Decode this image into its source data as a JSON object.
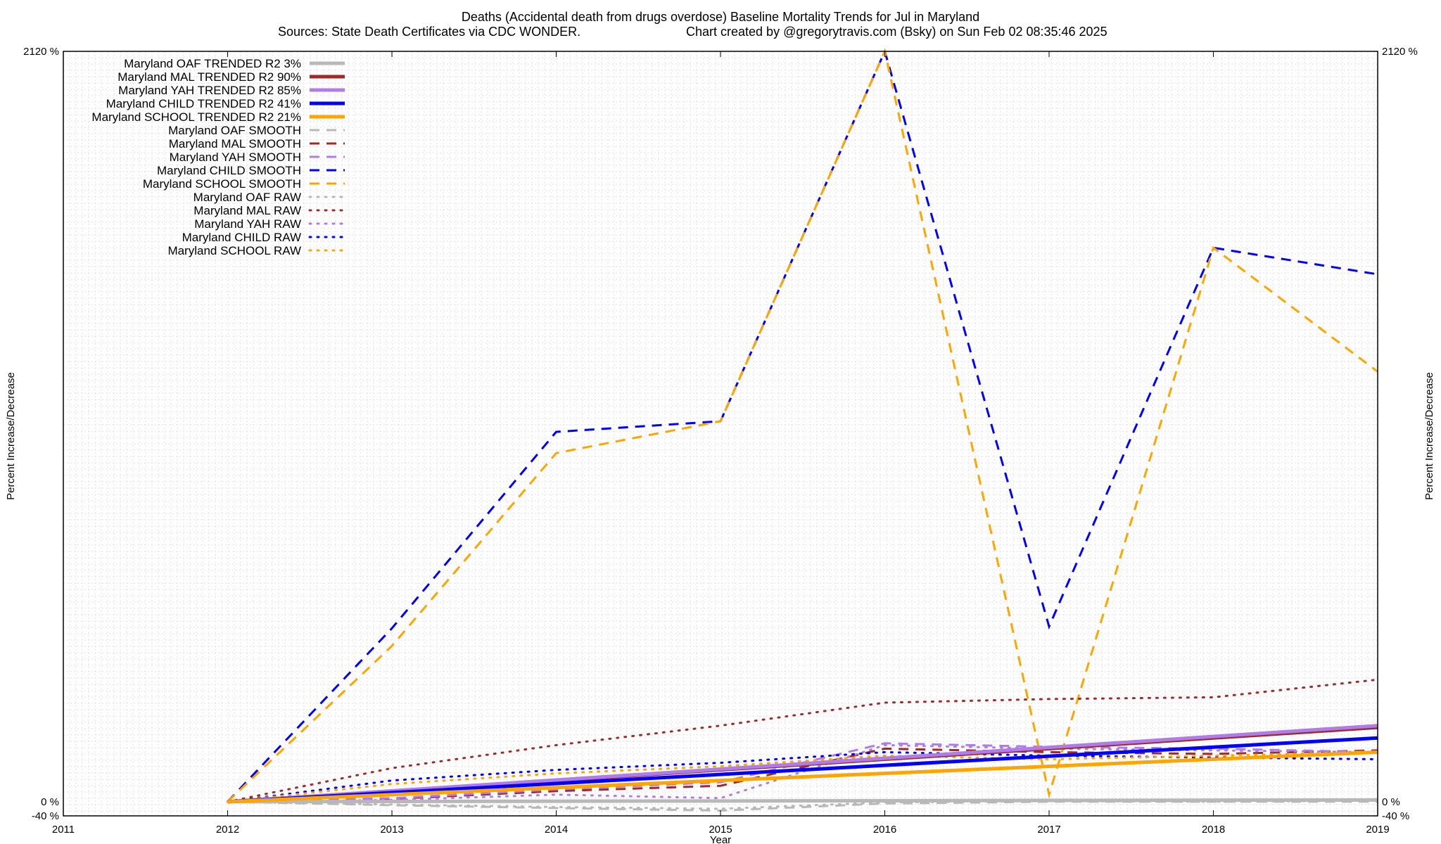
{
  "chart_data": {
    "type": "line",
    "title": "Deaths (Accidental death from drugs overdose)  Baseline Mortality Trends for Jul in Maryland",
    "subtitle": "Sources: State Death Certificates via CDC WONDER.",
    "credit": "Chart created by @gregorytravis.com (Bsky) on Sun Feb 02 08:35:46 2025",
    "xlabel": "Year",
    "ylabel": "Percent Increase/Decrease",
    "x_ticks": [
      "2011",
      "2012",
      "2013",
      "2014",
      "2015",
      "2016",
      "2017",
      "2018",
      "2019"
    ],
    "xlim": [
      2011,
      2019
    ],
    "ylim": [
      -40,
      2120
    ],
    "y_tick_labels": [
      "-40 %",
      "0 %",
      "2120 %"
    ],
    "grid": true,
    "legend_position": "top-left",
    "series": [
      {
        "name": "Maryland OAF TRENDED R2  3%",
        "color": "#b8b8b8",
        "style": "solid",
        "width": 5,
        "x": [
          2012,
          2019
        ],
        "y": [
          0,
          5
        ]
      },
      {
        "name": "Maryland MAL TRENDED R2  90%",
        "color": "#9e2a2a",
        "style": "solid",
        "width": 5,
        "x": [
          2012,
          2019
        ],
        "y": [
          0,
          210
        ]
      },
      {
        "name": "Maryland YAH TRENDED R2  85%",
        "color": "#b07ce8",
        "style": "solid",
        "width": 5,
        "x": [
          2012,
          2019
        ],
        "y": [
          0,
          215
        ]
      },
      {
        "name": "Maryland CHILD TRENDED R2  41%",
        "color": "#0000ff",
        "style": "solid",
        "width": 5,
        "x": [
          2012,
          2019
        ],
        "y": [
          0,
          180
        ]
      },
      {
        "name": "Maryland SCHOOL TRENDED R2  21%",
        "color": "#ffa500",
        "style": "solid",
        "width": 5,
        "x": [
          2012,
          2019
        ],
        "y": [
          0,
          140
        ]
      },
      {
        "name": "Maryland OAF SMOOTH",
        "color": "#b8b8b8",
        "style": "dashed",
        "width": 3,
        "x": [
          2012,
          2013,
          2014,
          2015,
          2016,
          2017,
          2018,
          2019
        ],
        "y": [
          0,
          -10,
          -18,
          -25,
          -5,
          0,
          0,
          0
        ]
      },
      {
        "name": "Maryland MAL SMOOTH",
        "color": "#9e2a2a",
        "style": "dashed",
        "width": 3,
        "x": [
          2012,
          2013,
          2014,
          2015,
          2016,
          2017,
          2018,
          2019
        ],
        "y": [
          0,
          8,
          30,
          45,
          150,
          140,
          135,
          145
        ]
      },
      {
        "name": "Maryland YAH SMOOTH",
        "color": "#b07ce8",
        "style": "dashed",
        "width": 3,
        "x": [
          2012,
          2013,
          2014,
          2015,
          2016,
          2017,
          2018,
          2019
        ],
        "y": [
          0,
          10,
          35,
          55,
          165,
          155,
          150,
          140
        ]
      },
      {
        "name": "Maryland CHILD SMOOTH",
        "color": "#0000ff",
        "style": "dashed",
        "width": 3,
        "x": [
          2012,
          2013,
          2014,
          2015,
          2016,
          2017,
          2018,
          2019
        ],
        "y": [
          0,
          490,
          1045,
          1075,
          2120,
          495,
          1565,
          1490
        ]
      },
      {
        "name": "Maryland SCHOOL SMOOTH",
        "color": "#ffa500",
        "style": "dashed",
        "width": 3,
        "x": [
          2012,
          2013,
          2014,
          2015,
          2016,
          2017,
          2018,
          2019
        ],
        "y": [
          0,
          440,
          985,
          1075,
          2120,
          20,
          1565,
          1215
        ]
      },
      {
        "name": "Maryland OAF RAW",
        "color": "#b8b8b8",
        "style": "dotted",
        "width": 3,
        "x": [
          2012,
          2013,
          2014,
          2015,
          2016,
          2017,
          2018,
          2019
        ],
        "y": [
          0,
          -8,
          -15,
          -20,
          -2,
          2,
          0,
          3
        ]
      },
      {
        "name": "Maryland MAL RAW",
        "color": "#9e2a2a",
        "style": "dotted",
        "width": 3,
        "x": [
          2012,
          2013,
          2014,
          2015,
          2016,
          2017,
          2018,
          2019
        ],
        "y": [
          0,
          95,
          160,
          215,
          280,
          290,
          295,
          345
        ]
      },
      {
        "name": "Maryland YAH RAW",
        "color": "#b07ce8",
        "style": "dotted",
        "width": 3,
        "x": [
          2012,
          2013,
          2014,
          2015,
          2016,
          2017,
          2018,
          2019
        ],
        "y": [
          0,
          5,
          20,
          10,
          160,
          150,
          145,
          140
        ]
      },
      {
        "name": "Maryland CHILD RAW",
        "color": "#0000ff",
        "style": "dotted",
        "width": 3,
        "x": [
          2012,
          2013,
          2014,
          2015,
          2016,
          2017,
          2018,
          2019
        ],
        "y": [
          0,
          60,
          90,
          110,
          140,
          130,
          125,
          120
        ]
      },
      {
        "name": "Maryland SCHOOL RAW",
        "color": "#ffa500",
        "style": "dotted",
        "width": 3,
        "x": [
          2012,
          2013,
          2014,
          2015,
          2016,
          2017,
          2018,
          2019
        ],
        "y": [
          0,
          50,
          80,
          100,
          130,
          120,
          130,
          140
        ]
      }
    ]
  }
}
